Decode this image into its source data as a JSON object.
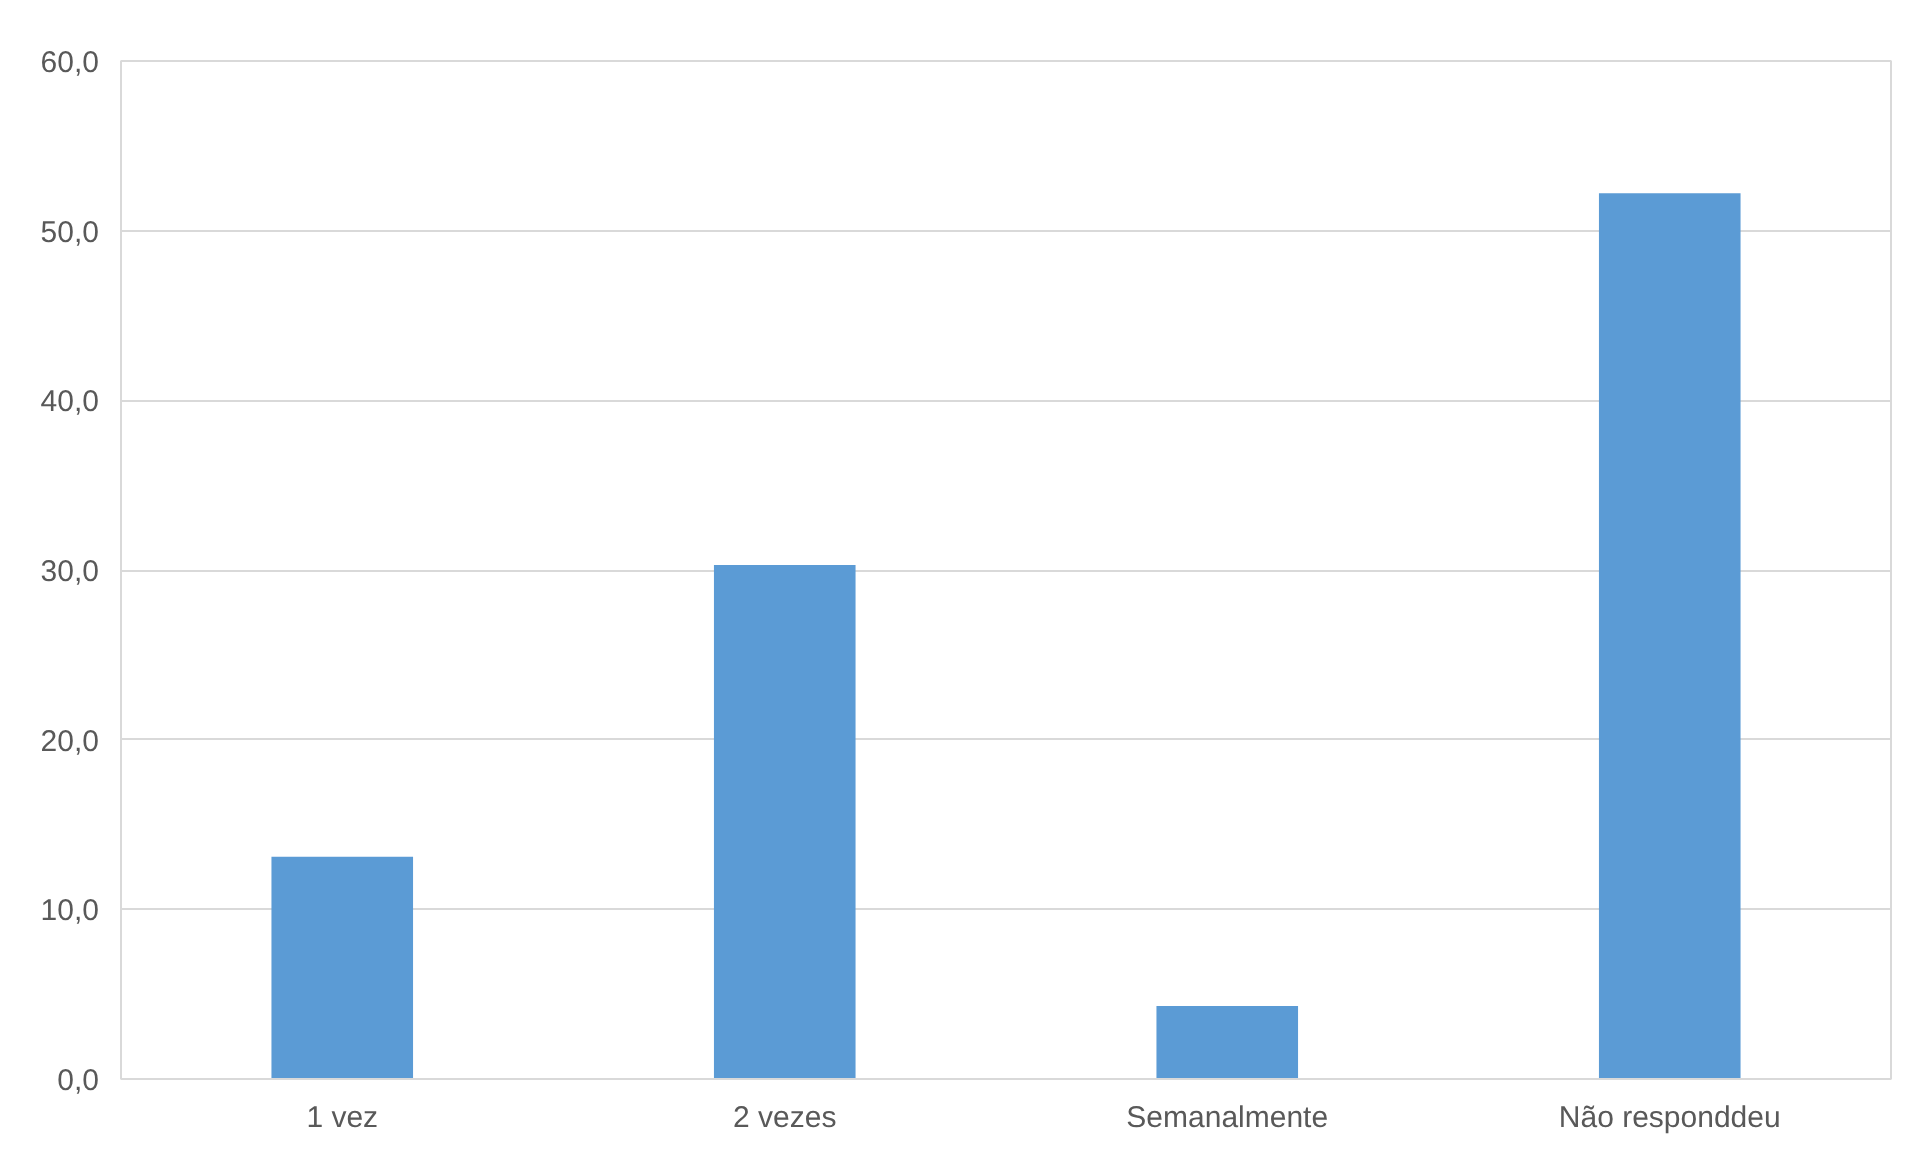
{
  "chart_data": {
    "type": "bar",
    "categories": [
      "1 vez",
      "2 vezes",
      "Semanalmente",
      "Não responddeu"
    ],
    "values": [
      13.1,
      30.3,
      4.3,
      52.2
    ],
    "color": "#5b9bd5",
    "ylim": [
      0,
      60
    ],
    "yticks": [
      {
        "value": 0,
        "label": "0,0"
      },
      {
        "value": 10,
        "label": "10,0"
      },
      {
        "value": 20,
        "label": "20,0"
      },
      {
        "value": 30,
        "label": "30,0"
      },
      {
        "value": 40,
        "label": "40,0"
      },
      {
        "value": 50,
        "label": "50,0"
      },
      {
        "value": 60,
        "label": "60,0"
      }
    ],
    "grid": "y"
  }
}
